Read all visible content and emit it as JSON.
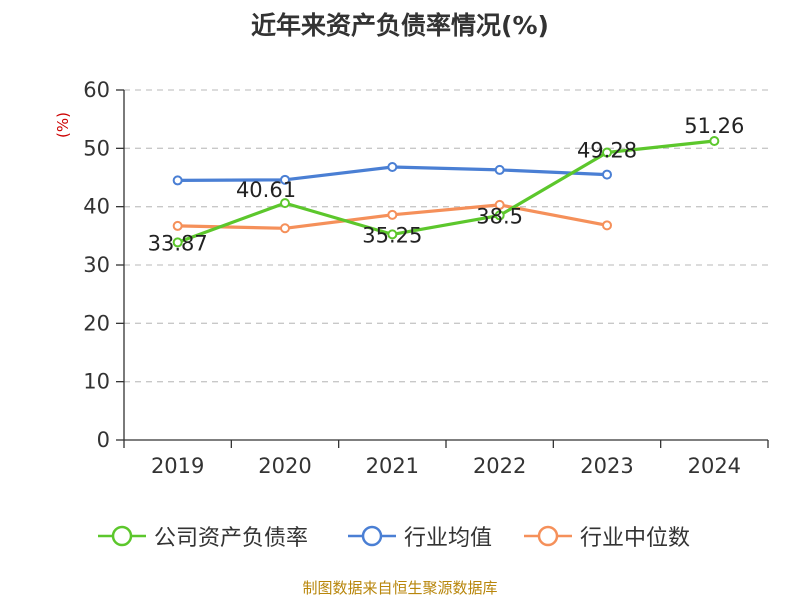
{
  "title": "近年来资产负债率情况(%)",
  "source_text": "制图数据来自恒生聚源数据库",
  "chart_data": {
    "type": "line",
    "title": "近年来资产负债率情况(%)",
    "ylabel": "(%)",
    "xlabel": "",
    "categories": [
      "2019",
      "2020",
      "2021",
      "2022",
      "2023",
      "2024"
    ],
    "ylim": [
      0,
      60
    ],
    "yticks": [
      0,
      10,
      20,
      30,
      40,
      50,
      60
    ],
    "grid": true,
    "legend_position": "bottom",
    "series": [
      {
        "name": "公司资产负债率",
        "color": "#5cc72c",
        "values": [
          33.87,
          40.61,
          35.25,
          38.5,
          49.28,
          51.26
        ],
        "labels": [
          "33.87",
          "40.61",
          "35.25",
          "38.5",
          "49.28",
          "51.26"
        ]
      },
      {
        "name": "行业均值",
        "color": "#4a7fd4",
        "values": [
          44.5,
          44.6,
          46.8,
          46.3,
          45.5,
          null
        ],
        "labels": []
      },
      {
        "name": "行业中位数",
        "color": "#f5905a",
        "values": [
          36.7,
          36.3,
          38.6,
          40.3,
          36.8,
          null
        ],
        "labels": []
      }
    ]
  }
}
